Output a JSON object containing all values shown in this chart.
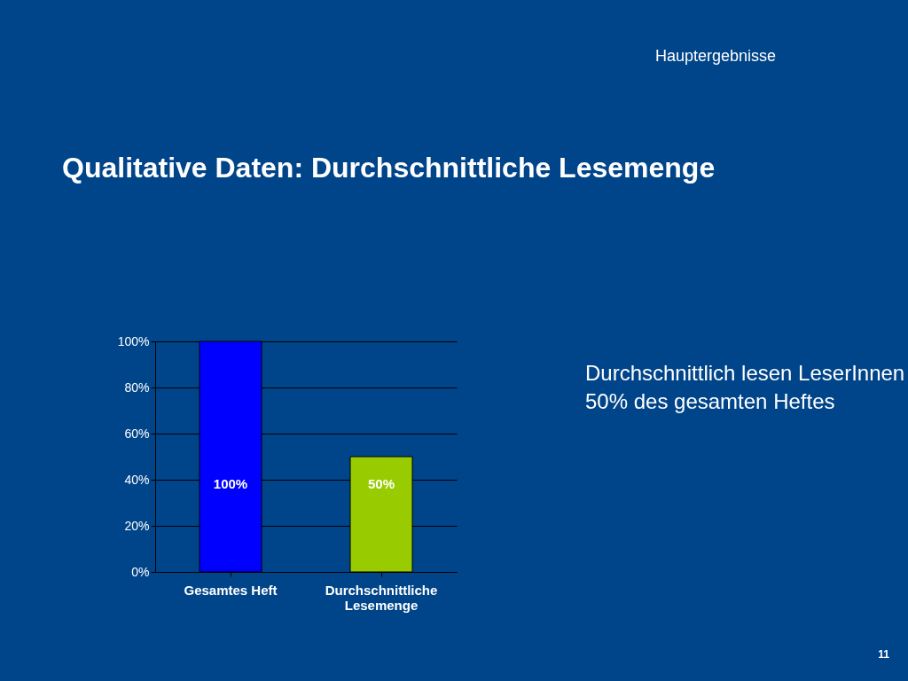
{
  "chart_data": {
    "type": "bar",
    "title": "Qualitative Daten: Durchschnittliche Lesemenge",
    "categories": [
      "Gesamtes Heft",
      "Durchschnittliche Lesemenge"
    ],
    "values": [
      100,
      50
    ],
    "colors": [
      "#0000ff",
      "#99cc00"
    ],
    "ylim": [
      0,
      100
    ],
    "yticks": [
      {
        "value": 0,
        "label": "0%"
      },
      {
        "value": 20,
        "label": "20%"
      },
      {
        "value": 40,
        "label": "40%"
      },
      {
        "value": 60,
        "label": "60%"
      },
      {
        "value": 80,
        "label": "80%"
      },
      {
        "value": 100,
        "label": "100%"
      }
    ],
    "value_labels": [
      "100%",
      "50%"
    ],
    "grid": "y",
    "annotations": [
      "Hauptergebnisse",
      "Durchschnittlich lesen LeserInnen\n50% des gesamten Heftes",
      "11"
    ]
  }
}
